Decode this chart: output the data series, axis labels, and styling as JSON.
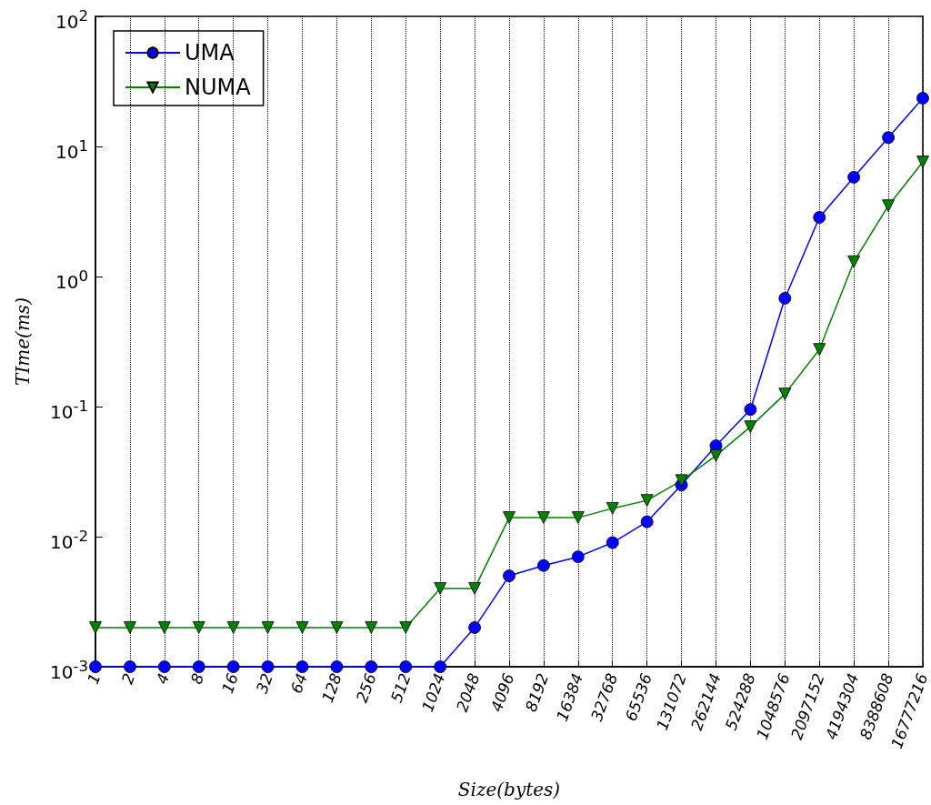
{
  "chart_data": {
    "type": "line",
    "xlabel": "Size(bytes)",
    "ylabel": "TIme(ms)",
    "categories": [
      "1",
      "2",
      "4",
      "8",
      "16",
      "32",
      "64",
      "128",
      "256",
      "512",
      "1024",
      "2048",
      "4096",
      "8192",
      "16384",
      "32768",
      "65536",
      "131072",
      "262144",
      "524288",
      "1048576",
      "2097152",
      "4194304",
      "8388608",
      "16777216"
    ],
    "series": [
      {
        "name": "UMA",
        "color": "#0000ff",
        "marker": "circle",
        "values": [
          0.001,
          0.001,
          0.001,
          0.001,
          0.001,
          0.001,
          0.001,
          0.001,
          0.001,
          0.001,
          0.001,
          0.002,
          0.005,
          0.006,
          0.007,
          0.009,
          0.013,
          0.025,
          0.05,
          0.095,
          0.68,
          2.85,
          5.8,
          11.7,
          23.5
        ]
      },
      {
        "name": "NUMA",
        "color": "#008000",
        "marker": "triangle",
        "values": [
          0.002,
          0.002,
          0.002,
          0.002,
          0.002,
          0.002,
          0.002,
          0.002,
          0.002,
          0.002,
          0.004,
          0.004,
          0.014,
          0.014,
          0.014,
          0.0165,
          0.019,
          0.027,
          0.042,
          0.07,
          0.125,
          0.275,
          1.3,
          3.5,
          7.6
        ]
      }
    ],
    "log": "y",
    "ylim": [
      0.001,
      100
    ],
    "yticks": [
      {
        "value": 0.001,
        "label": "10$^{-3}$"
      },
      {
        "value": 0.01,
        "label": "10$^{-2}$"
      },
      {
        "value": 0.1,
        "label": "10$^{-1}$"
      },
      {
        "value": 1,
        "label": "10$^{0}$"
      },
      {
        "value": 10,
        "label": "10$^{1}$"
      },
      {
        "value": 100,
        "label": "10$^{2}$"
      }
    ],
    "grid": "x",
    "legend": "top left",
    "line_style": "solid"
  }
}
